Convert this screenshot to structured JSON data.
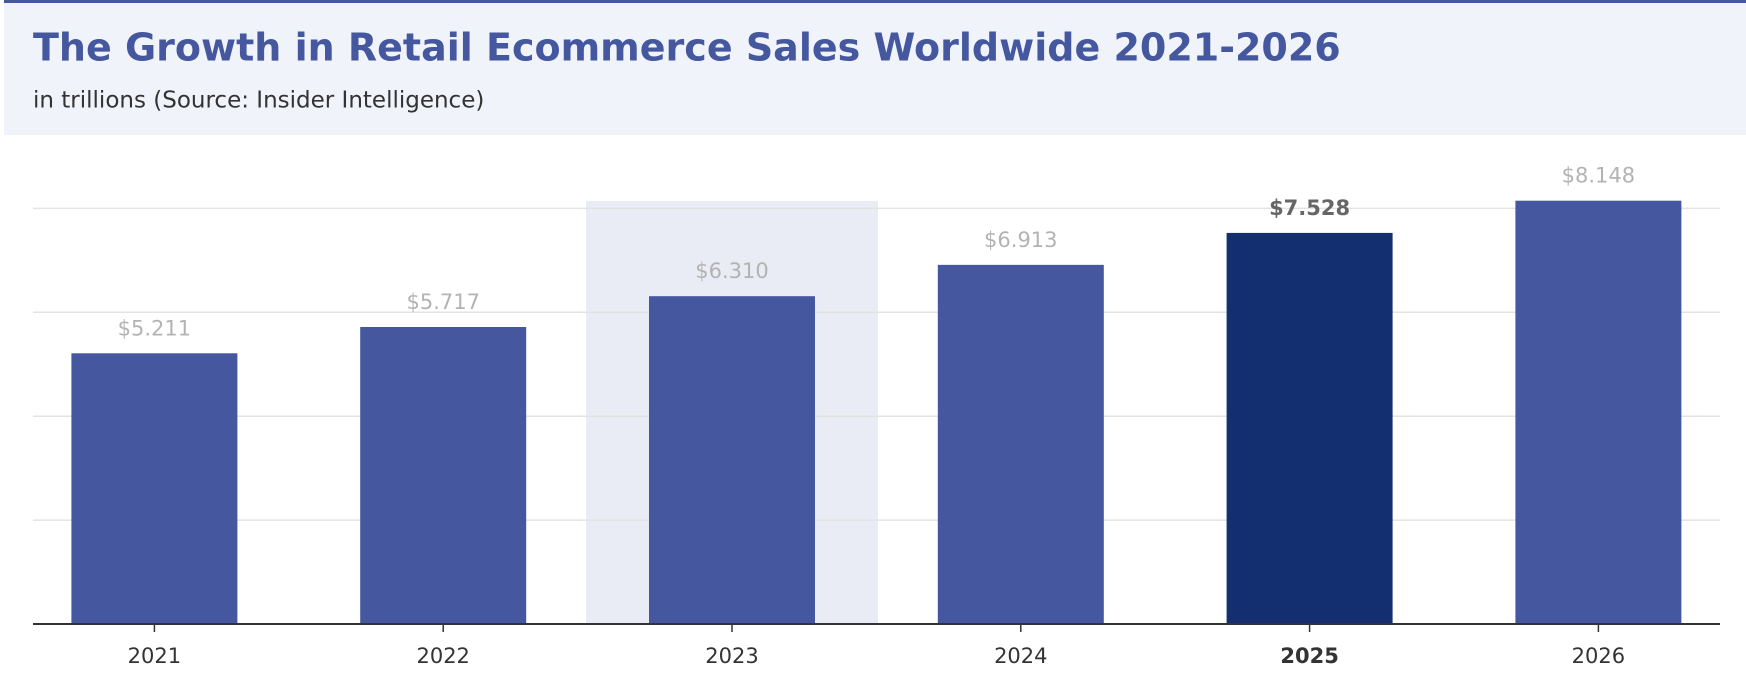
{
  "chart_data": {
    "type": "bar",
    "title": "The Growth in Retail Ecommerce Sales Worldwide 2021-2026",
    "subtitle": "in trillions (Source: Insider Intelligence)",
    "categories": [
      "2021",
      "2022",
      "2023",
      "2024",
      "2025",
      "2026"
    ],
    "values": [
      5.211,
      5.717,
      6.31,
      6.913,
      7.528,
      8.148
    ],
    "value_labels": [
      "$5.211",
      "$5.717",
      "$6.310",
      "$6.913",
      "$7.528",
      "$8.148"
    ],
    "colors": [
      "#45579e",
      "#45579e",
      "#45579e",
      "#45579e",
      "#142f6f",
      "#45579e"
    ],
    "highlight": {
      "shaded_index": 2,
      "emphasized_index": 4
    },
    "ylim": [
      0,
      8.2
    ],
    "yticks": [
      0,
      2,
      4,
      6,
      8
    ],
    "grid": true
  }
}
